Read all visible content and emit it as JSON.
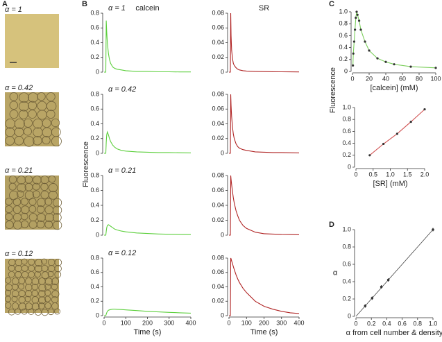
{
  "panel_labels": [
    "A",
    "B",
    "C",
    "D"
  ],
  "micrograph_labels": [
    "α = 1",
    "α = 0.42",
    "α = 0.21",
    "α = 0.12"
  ],
  "panel_b_ylabel": "Fluorescence",
  "panel_c_ylabel": "Fluorescence",
  "chart_data": [
    {
      "type": "line",
      "title": "calcein",
      "annotation": "α = 1",
      "color": "#5ccf3c",
      "x": [
        0,
        8,
        10,
        12,
        15,
        20,
        25,
        30,
        40,
        50,
        60,
        80,
        100,
        150,
        200,
        250,
        300,
        350,
        400
      ],
      "values": [
        0,
        0,
        0.7,
        0.55,
        0.4,
        0.25,
        0.17,
        0.12,
        0.07,
        0.05,
        0.04,
        0.03,
        0.02,
        0.01,
        0.01,
        0.005,
        0.005,
        0.003,
        0.003
      ],
      "xlim": [
        0,
        400
      ],
      "ylim": [
        0,
        0.8
      ],
      "yticks": [
        0,
        0.2,
        0.4,
        0.6,
        0.8
      ]
    },
    {
      "type": "line",
      "annotation": "α = 0.42",
      "color": "#5ccf3c",
      "x": [
        0,
        8,
        10,
        12,
        15,
        20,
        25,
        30,
        40,
        50,
        60,
        80,
        100,
        150,
        200,
        250,
        300,
        350,
        400
      ],
      "values": [
        0,
        0,
        0.15,
        0.25,
        0.29,
        0.25,
        0.2,
        0.16,
        0.11,
        0.08,
        0.06,
        0.04,
        0.03,
        0.02,
        0.015,
        0.01,
        0.01,
        0.008,
        0.006
      ],
      "xlim": [
        0,
        400
      ],
      "ylim": [
        0,
        0.8
      ],
      "yticks": [
        0,
        0.2,
        0.4,
        0.6,
        0.8
      ]
    },
    {
      "type": "line",
      "annotation": "α = 0.21",
      "color": "#5ccf3c",
      "x": [
        0,
        8,
        10,
        12,
        15,
        20,
        25,
        30,
        40,
        50,
        60,
        80,
        100,
        150,
        200,
        250,
        300,
        350,
        400
      ],
      "values": [
        0,
        0,
        0.05,
        0.1,
        0.13,
        0.14,
        0.13,
        0.12,
        0.1,
        0.08,
        0.07,
        0.055,
        0.045,
        0.03,
        0.022,
        0.016,
        0.012,
        0.01,
        0.008
      ],
      "xlim": [
        0,
        400
      ],
      "ylim": [
        0,
        0.8
      ],
      "yticks": [
        0,
        0.2,
        0.4,
        0.6,
        0.8
      ]
    },
    {
      "type": "line",
      "annotation": "α = 0.12",
      "color": "#5ccf3c",
      "xlabel": "Time (s)",
      "x": [
        0,
        8,
        10,
        12,
        15,
        20,
        25,
        30,
        40,
        50,
        60,
        80,
        100,
        150,
        200,
        250,
        300,
        350,
        400
      ],
      "values": [
        0,
        0,
        0.02,
        0.04,
        0.06,
        0.075,
        0.08,
        0.085,
        0.09,
        0.09,
        0.088,
        0.085,
        0.08,
        0.07,
        0.06,
        0.052,
        0.045,
        0.04,
        0.035
      ],
      "xlim": [
        0,
        400
      ],
      "ylim": [
        0,
        0.8
      ],
      "yticks": [
        0,
        0.2,
        0.4,
        0.6,
        0.8
      ],
      "xticks": [
        0,
        100,
        200,
        300,
        400
      ]
    },
    {
      "type": "line",
      "title": "SR",
      "color": "#b02424",
      "x": [
        0,
        8,
        10,
        12,
        15,
        20,
        25,
        30,
        40,
        50,
        60,
        80,
        100,
        150,
        200,
        250,
        300,
        350,
        400
      ],
      "values": [
        0,
        0,
        0.08,
        0.05,
        0.03,
        0.018,
        0.012,
        0.009,
        0.006,
        0.004,
        0.003,
        0.002,
        0.0015,
        0.001,
        0.0008,
        0.0006,
        0.0005,
        0.0004,
        0.0003
      ],
      "xlim": [
        0,
        400
      ],
      "ylim": [
        0,
        0.08
      ],
      "yticks": [
        0,
        0.02,
        0.04,
        0.06,
        0.08
      ]
    },
    {
      "type": "line",
      "color": "#b02424",
      "x": [
        0,
        8,
        10,
        12,
        15,
        20,
        25,
        30,
        40,
        50,
        60,
        80,
        100,
        150,
        200,
        250,
        300,
        350,
        400
      ],
      "values": [
        0,
        0,
        0.08,
        0.065,
        0.05,
        0.035,
        0.026,
        0.02,
        0.013,
        0.009,
        0.007,
        0.005,
        0.004,
        0.002,
        0.0015,
        0.001,
        0.001,
        0.0008,
        0.0006
      ],
      "xlim": [
        0,
        400
      ],
      "ylim": [
        0,
        0.08
      ],
      "yticks": [
        0,
        0.02,
        0.04,
        0.06,
        0.08
      ]
    },
    {
      "type": "line",
      "color": "#b02424",
      "x": [
        0,
        8,
        10,
        12,
        15,
        20,
        25,
        30,
        40,
        50,
        60,
        80,
        100,
        150,
        200,
        250,
        300,
        350,
        400
      ],
      "values": [
        0,
        0,
        0.08,
        0.075,
        0.068,
        0.058,
        0.05,
        0.043,
        0.033,
        0.026,
        0.02,
        0.013,
        0.009,
        0.004,
        0.002,
        0.0015,
        0.001,
        0.0008,
        0.0006
      ],
      "xlim": [
        0,
        400
      ],
      "ylim": [
        0,
        0.08
      ],
      "yticks": [
        0,
        0.02,
        0.04,
        0.06,
        0.08
      ]
    },
    {
      "type": "line",
      "color": "#b02424",
      "xlabel": "Time (s)",
      "x": [
        0,
        8,
        10,
        12,
        15,
        20,
        25,
        30,
        40,
        50,
        60,
        80,
        100,
        150,
        200,
        250,
        300,
        350,
        400
      ],
      "values": [
        0,
        0,
        0.08,
        0.079,
        0.076,
        0.072,
        0.068,
        0.064,
        0.057,
        0.051,
        0.046,
        0.038,
        0.032,
        0.02,
        0.013,
        0.009,
        0.006,
        0.004,
        0.003
      ],
      "xlim": [
        0,
        400
      ],
      "ylim": [
        0,
        0.08
      ],
      "yticks": [
        0,
        0.02,
        0.04,
        0.06,
        0.08
      ],
      "xticks": [
        0,
        100,
        200,
        300,
        400
      ]
    },
    {
      "type": "scatter",
      "xlabel": "[calcein] (mM)",
      "color": "#333333",
      "line_color": "#7ccf5c",
      "x": [
        0.5,
        1,
        2,
        3,
        4,
        5,
        6,
        8,
        10,
        15,
        20,
        30,
        40,
        50,
        70,
        100
      ],
      "values": [
        0.1,
        0.3,
        0.5,
        0.7,
        0.9,
        1.0,
        0.95,
        0.85,
        0.7,
        0.5,
        0.35,
        0.22,
        0.16,
        0.12,
        0.08,
        0.06
      ],
      "xlim": [
        0,
        100
      ],
      "ylim": [
        0,
        1
      ],
      "xticks": [
        0,
        20,
        40,
        60,
        80,
        100
      ],
      "yticks": [
        0,
        0.2,
        0.4,
        0.6,
        0.8,
        {
          "value": 1,
          "label": "1.0"
        }
      ]
    },
    {
      "type": "scatter",
      "xlabel": "[SR] (mM)",
      "color": "#333333",
      "line_color": "#d05050",
      "x": [
        0.4,
        0.8,
        1.2,
        1.6,
        2.0
      ],
      "values": [
        0.2,
        0.39,
        0.56,
        0.76,
        0.97
      ],
      "xlim": [
        0,
        2
      ],
      "ylim": [
        0,
        1
      ],
      "xticks": [
        0,
        0.5,
        {
          "value": 1,
          "label": "1.0"
        },
        1.5,
        {
          "value": 2,
          "label": "2.0"
        }
      ],
      "yticks": [
        0,
        0.2,
        0.4,
        0.6,
        0.8,
        {
          "value": 1,
          "label": "1.0"
        }
      ]
    },
    {
      "type": "errorbar",
      "xlabel": "α from cell number & density",
      "ylabel": "α",
      "color": "#333333",
      "x": [
        0.12,
        0.21,
        0.33,
        0.42,
        1.0
      ],
      "values": [
        0.12,
        0.21,
        0.34,
        0.42,
        1.0
      ],
      "errors": [
        0.02,
        0.02,
        0.02,
        0.02,
        0.02
      ],
      "xlim": [
        0,
        1
      ],
      "ylim": [
        0,
        1
      ],
      "xticks": [
        0,
        0.2,
        0.4,
        0.6,
        0.8,
        {
          "value": 1,
          "label": "1.0"
        }
      ],
      "yticks": [
        0,
        0.2,
        0.4,
        0.6,
        0.8,
        {
          "value": 1,
          "label": "1.0"
        }
      ]
    }
  ]
}
